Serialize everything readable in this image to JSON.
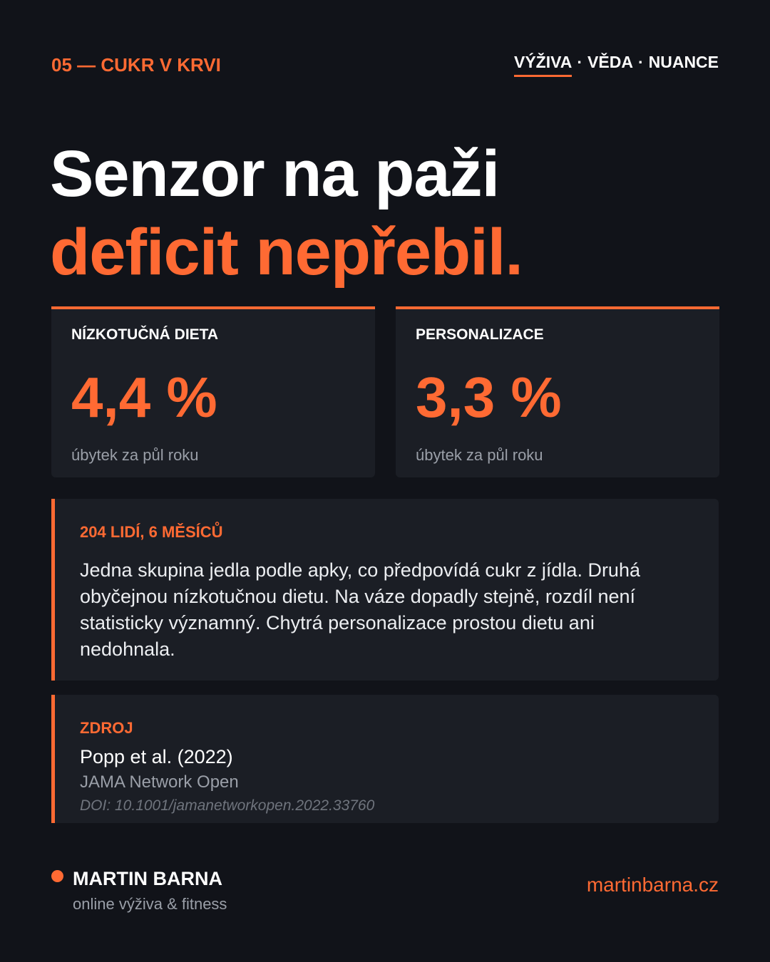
{
  "header": {
    "section": "05 — CUKR V KRVI",
    "nav": [
      "VÝŽIVA",
      "VĚDA",
      "NUANCE"
    ],
    "separator": "·"
  },
  "title": {
    "line1": "Senzor na paži",
    "line2": "deficit nepřebil."
  },
  "stats": [
    {
      "label": "NÍZKOTUČNÁ DIETA",
      "value": "4,4 %",
      "caption": "úbytek za půl roku"
    },
    {
      "label": "PERSONALIZACE",
      "value": "3,3 %",
      "caption": "úbytek za půl roku"
    }
  ],
  "study": {
    "heading": "204 LIDÍ, 6 MĚSÍCŮ",
    "text": "Jedna skupina jedla podle apky, co předpovídá cukr z jídla. Druhá obyčejnou nízkotučnou dietu. Na váze dopadly stejně, rozdíl není statisticky významný. Chytrá personalizace prostou dietu ani nedohnala."
  },
  "source": {
    "heading": "ZDROJ",
    "citation": "Popp et al. (2022)",
    "journal": "JAMA Network Open",
    "doi": "DOI: 10.1001/jamanetworkopen.2022.33760"
  },
  "footer": {
    "name": "MARTIN BARNA",
    "tagline": "online výživa & fitness",
    "url": "martinbarna.cz"
  }
}
